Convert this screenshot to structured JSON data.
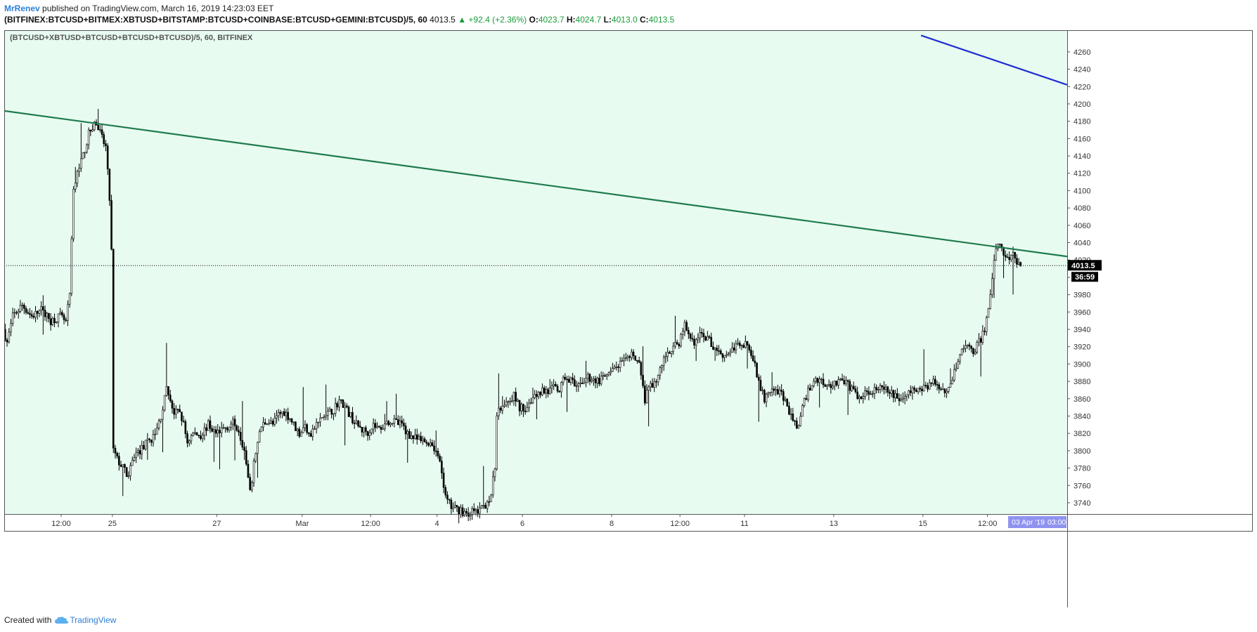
{
  "header": {
    "author": "MrRenev",
    "published_text": "published on TradingView.com, March 16, 2019 14:23:03 EET",
    "symbol": "(BITFINEX:BTCUSD+BITMEX:XBTUSD+BITSTAMP:BTCUSD+COINBASE:BTCUSD+GEMINI:BTCUSD)/5, 60",
    "last": "4013.5",
    "change": "▲ +92.4 (+2.36%)",
    "open_label": "O:",
    "open": "4023.7",
    "high_label": "H:",
    "high": "4024.7",
    "low_label": "L:",
    "low": "4013.0",
    "close_label": "C:",
    "close": "4013.5"
  },
  "footer": {
    "created_with": "Created with",
    "brand": "TradingView"
  },
  "colors": {
    "chart_bg": "#e8fbf1",
    "candle": "#000000",
    "trendline_green": "#1e7b4c",
    "trendline_blue": "#1f2fd1",
    "time_badge": "#8f93f0",
    "price_badge": "#000000"
  },
  "chart_data": {
    "type": "candlestick",
    "title": "(BTCUSD+XBTUSD+BTCUSD+BTCUSD+BTCUSD)/5, 60, BITFINEX",
    "interval_hours": 1,
    "x_range_hours": [
      0,
      560
    ],
    "ylim": [
      3727,
      4285
    ],
    "y_ticks": [
      3740,
      3760,
      3780,
      3800,
      3820,
      3840,
      3860,
      3880,
      3900,
      3920,
      3940,
      3960,
      3980,
      4000,
      4020,
      4040,
      4060,
      4080,
      4100,
      4120,
      4140,
      4160,
      4180,
      4200,
      4220,
      4240,
      4260
    ],
    "x_ticks": [
      {
        "hour": 30,
        "label": "12:00"
      },
      {
        "hour": 57,
        "label": "25"
      },
      {
        "hour": 112,
        "label": "27"
      },
      {
        "hour": 157,
        "label": "Mar"
      },
      {
        "hour": 193,
        "label": "12:00"
      },
      {
        "hour": 228,
        "label": "4"
      },
      {
        "hour": 273,
        "label": "6"
      },
      {
        "hour": 320,
        "label": "8"
      },
      {
        "hour": 356,
        "label": "12:00"
      },
      {
        "hour": 390,
        "label": "11"
      },
      {
        "hour": 437,
        "label": "13"
      },
      {
        "hour": 484,
        "label": "15"
      },
      {
        "hour": 518,
        "label": "12:00"
      }
    ],
    "price_path": [
      [
        0,
        3940
      ],
      [
        2,
        3925
      ],
      [
        5,
        3955
      ],
      [
        10,
        3968
      ],
      [
        15,
        3955
      ],
      [
        20,
        3962
      ],
      [
        25,
        3950
      ],
      [
        30,
        3955
      ],
      [
        33,
        3948
      ],
      [
        35,
        3980
      ],
      [
        37,
        4100
      ],
      [
        40,
        4130
      ],
      [
        42,
        4140
      ],
      [
        45,
        4165
      ],
      [
        48,
        4178
      ],
      [
        50,
        4172
      ],
      [
        52,
        4160
      ],
      [
        54,
        4150
      ],
      [
        56,
        4090
      ],
      [
        57,
        4030
      ],
      [
        58,
        3800
      ],
      [
        60,
        3790
      ],
      [
        63,
        3780
      ],
      [
        66,
        3770
      ],
      [
        69,
        3795
      ],
      [
        72,
        3800
      ],
      [
        76,
        3810
      ],
      [
        80,
        3818
      ],
      [
        83,
        3840
      ],
      [
        86,
        3870
      ],
      [
        88,
        3860
      ],
      [
        90,
        3842
      ],
      [
        93,
        3845
      ],
      [
        95,
        3830
      ],
      [
        97,
        3810
      ],
      [
        100,
        3820
      ],
      [
        104,
        3818
      ],
      [
        108,
        3830
      ],
      [
        112,
        3820
      ],
      [
        115,
        3825
      ],
      [
        118,
        3828
      ],
      [
        121,
        3832
      ],
      [
        124,
        3825
      ],
      [
        127,
        3800
      ],
      [
        130,
        3750
      ],
      [
        133,
        3800
      ],
      [
        136,
        3828
      ],
      [
        139,
        3835
      ],
      [
        142,
        3830
      ],
      [
        145,
        3842
      ],
      [
        148,
        3845
      ],
      [
        151,
        3838
      ],
      [
        153,
        3830
      ],
      [
        156,
        3820
      ],
      [
        159,
        3828
      ],
      [
        162,
        3820
      ],
      [
        165,
        3830
      ],
      [
        168,
        3838
      ],
      [
        171,
        3842
      ],
      [
        174,
        3848
      ],
      [
        177,
        3858
      ],
      [
        180,
        3850
      ],
      [
        183,
        3840
      ],
      [
        186,
        3830
      ],
      [
        189,
        3824
      ],
      [
        192,
        3822
      ],
      [
        195,
        3830
      ],
      [
        198,
        3825
      ],
      [
        201,
        3832
      ],
      [
        204,
        3835
      ],
      [
        207,
        3832
      ],
      [
        210,
        3830
      ],
      [
        213,
        3820
      ],
      [
        216,
        3815
      ],
      [
        219,
        3812
      ],
      [
        222,
        3810
      ],
      [
        225,
        3810
      ],
      [
        228,
        3800
      ],
      [
        231,
        3775
      ],
      [
        233,
        3745
      ],
      [
        236,
        3735
      ],
      [
        239,
        3732
      ],
      [
        242,
        3730
      ],
      [
        245,
        3728
      ],
      [
        248,
        3730
      ],
      [
        251,
        3730
      ],
      [
        254,
        3738
      ],
      [
        257,
        3750
      ],
      [
        259,
        3780
      ],
      [
        260,
        3845
      ],
      [
        263,
        3855
      ],
      [
        266,
        3860
      ],
      [
        269,
        3863
      ],
      [
        272,
        3850
      ],
      [
        275,
        3848
      ],
      [
        278,
        3860
      ],
      [
        281,
        3865
      ],
      [
        284,
        3870
      ],
      [
        287,
        3868
      ],
      [
        290,
        3872
      ],
      [
        293,
        3870
      ],
      [
        296,
        3885
      ],
      [
        299,
        3882
      ],
      [
        302,
        3870
      ],
      [
        305,
        3880
      ],
      [
        308,
        3885
      ],
      [
        311,
        3882
      ],
      [
        314,
        3880
      ],
      [
        317,
        3885
      ],
      [
        320,
        3888
      ],
      [
        323,
        3898
      ],
      [
        326,
        3900
      ],
      [
        329,
        3905
      ],
      [
        332,
        3912
      ],
      [
        335,
        3900
      ],
      [
        337,
        3870
      ],
      [
        338,
        3860
      ],
      [
        341,
        3875
      ],
      [
        344,
        3880
      ],
      [
        347,
        3900
      ],
      [
        350,
        3915
      ],
      [
        353,
        3918
      ],
      [
        356,
        3925
      ],
      [
        359,
        3945
      ],
      [
        362,
        3930
      ],
      [
        365,
        3925
      ],
      [
        368,
        3935
      ],
      [
        371,
        3930
      ],
      [
        374,
        3920
      ],
      [
        377,
        3915
      ],
      [
        380,
        3910
      ],
      [
        383,
        3915
      ],
      [
        386,
        3920
      ],
      [
        389,
        3925
      ],
      [
        392,
        3922
      ],
      [
        395,
        3905
      ],
      [
        398,
        3880
      ],
      [
        401,
        3860
      ],
      [
        404,
        3865
      ],
      [
        407,
        3870
      ],
      [
        410,
        3865
      ],
      [
        413,
        3850
      ],
      [
        415,
        3840
      ],
      [
        417,
        3830
      ],
      [
        419,
        3830
      ],
      [
        421,
        3848
      ],
      [
        424,
        3870
      ],
      [
        427,
        3880
      ],
      [
        430,
        3882
      ],
      [
        433,
        3878
      ],
      [
        436,
        3875
      ],
      [
        439,
        3880
      ],
      [
        442,
        3882
      ],
      [
        445,
        3875
      ],
      [
        448,
        3870
      ],
      [
        451,
        3860
      ],
      [
        454,
        3865
      ],
      [
        457,
        3870
      ],
      [
        460,
        3872
      ],
      [
        463,
        3870
      ],
      [
        466,
        3868
      ],
      [
        469,
        3865
      ],
      [
        472,
        3860
      ],
      [
        475,
        3862
      ],
      [
        478,
        3868
      ],
      [
        481,
        3870
      ],
      [
        484,
        3872
      ],
      [
        487,
        3875
      ],
      [
        490,
        3880
      ],
      [
        493,
        3875
      ],
      [
        496,
        3870
      ],
      [
        499,
        3878
      ],
      [
        502,
        3900
      ],
      [
        505,
        3915
      ],
      [
        508,
        3920
      ],
      [
        511,
        3915
      ],
      [
        514,
        3925
      ],
      [
        517,
        3940
      ],
      [
        519,
        3960
      ],
      [
        521,
        4000
      ],
      [
        523,
        4030
      ],
      [
        525,
        4040
      ],
      [
        527,
        4030
      ],
      [
        529,
        4020
      ],
      [
        531,
        4025
      ],
      [
        533,
        4023
      ],
      [
        535,
        4013.5
      ]
    ],
    "last_price": 4013.5,
    "price_badge_text": "4013.5",
    "countdown": "36:59",
    "time_badge": [
      "03 Apr '19",
      "03:00"
    ],
    "trendlines": [
      {
        "color": "green",
        "from": [
          0,
          4192
        ],
        "to": [
          560,
          4024
        ]
      },
      {
        "color": "blue",
        "from": [
          483,
          4279
        ],
        "to": [
          560,
          4222
        ]
      }
    ]
  }
}
